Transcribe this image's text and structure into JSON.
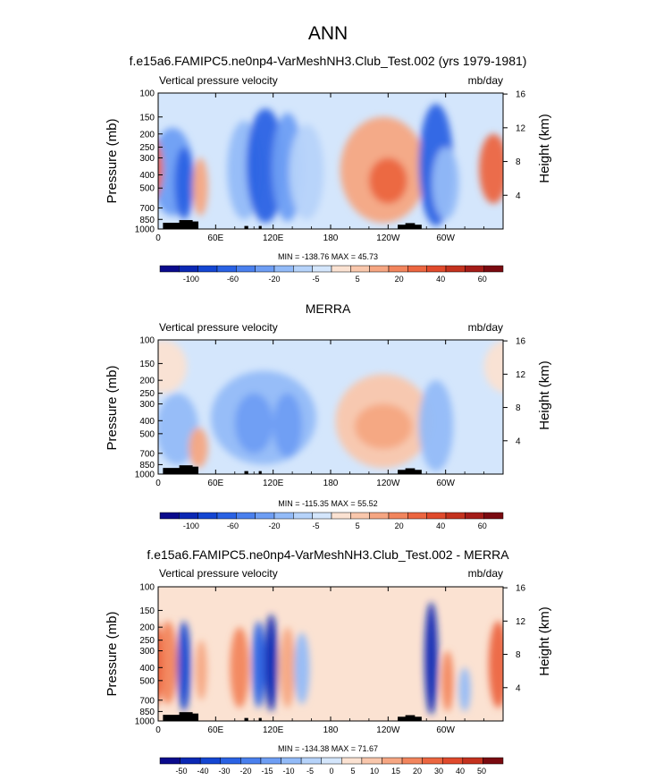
{
  "figure_title": "ANN",
  "chart_data": [
    {
      "type": "heatmap",
      "title": "f.e15a6.FAMIPC5.ne0np4-VarMeshNH3.Club_Test.002 (yrs 1979-1981)",
      "left_label": "Vertical pressure velocity",
      "right_label": "mb/day",
      "ylabel": "Pressure (mb)",
      "ylabel_right": "Height (km)",
      "x_ticks": [
        "0",
        "60E",
        "120E",
        "180",
        "120W",
        "60W"
      ],
      "y_ticks": [
        "100",
        "150",
        "200",
        "250",
        "300",
        "400",
        "500",
        "700",
        "850",
        "1000"
      ],
      "y_right_ticks": [
        "16",
        "12",
        "8",
        "4"
      ],
      "stats": "MIN = -138.76   MAX =  45.73",
      "colorbar_labels": [
        "-100",
        "-60",
        "-20",
        "-5",
        "5",
        "20",
        "40",
        "60"
      ],
      "colorbar_colors": [
        "#0a0a8c",
        "#0b28b4",
        "#1446d2",
        "#2a62e4",
        "#4a80ee",
        "#6e9ef4",
        "#93bbf8",
        "#b6d3fa",
        "#d4e6fc",
        "#fbe2d2",
        "#f9c7ac",
        "#f6a682",
        "#f2855d",
        "#ec6640",
        "#e04a2c",
        "#c4321e",
        "#a41c18",
        "#7a0a10"
      ],
      "features": [
        {
          "lon": 15,
          "lon_w": 22,
          "p_top": 180,
          "p_bot": 800,
          "value": -45
        },
        {
          "lon": 27,
          "lon_w": 10,
          "p_top": 250,
          "p_bot": 850,
          "value": -70
        },
        {
          "lon": 44,
          "lon_w": 8,
          "p_top": 300,
          "p_bot": 800,
          "value": 20
        },
        {
          "lon": 90,
          "lon_w": 18,
          "p_top": 160,
          "p_bot": 850,
          "value": -25
        },
        {
          "lon": 112,
          "lon_w": 20,
          "p_top": 130,
          "p_bot": 900,
          "value": -60
        },
        {
          "lon": 135,
          "lon_w": 16,
          "p_top": 140,
          "p_bot": 880,
          "value": -45
        },
        {
          "lon": 155,
          "lon_w": 18,
          "p_top": 170,
          "p_bot": 850,
          "value": -15
        },
        {
          "lon": 235,
          "lon_w": 45,
          "p_top": 150,
          "p_bot": 900,
          "value": 15
        },
        {
          "lon": 240,
          "lon_w": 20,
          "p_top": 300,
          "p_bot": 650,
          "value": 32
        },
        {
          "lon": 290,
          "lon_w": 18,
          "p_top": 120,
          "p_bot": 950,
          "value": -60
        },
        {
          "lon": 300,
          "lon_w": 14,
          "p_top": 250,
          "p_bot": 850,
          "value": -25
        },
        {
          "lon": 350,
          "lon_w": 15,
          "p_top": 200,
          "p_bot": 650,
          "value": 30
        }
      ]
    },
    {
      "type": "heatmap",
      "title": "MERRA",
      "left_label": "Vertical pressure velocity",
      "right_label": "mb/day",
      "ylabel": "Pressure (mb)",
      "ylabel_right": "Height (km)",
      "x_ticks": [
        "0",
        "60E",
        "120E",
        "180",
        "120W",
        "60W"
      ],
      "y_ticks": [
        "100",
        "150",
        "200",
        "250",
        "300",
        "400",
        "500",
        "700",
        "850",
        "1000"
      ],
      "y_right_ticks": [
        "16",
        "12",
        "8",
        "4"
      ],
      "stats": "MIN = -115.35   MAX =  55.52",
      "colorbar_labels": [
        "-100",
        "-60",
        "-20",
        "-5",
        "5",
        "20",
        "40",
        "60"
      ],
      "colorbar_colors": [
        "#0a0a8c",
        "#0b28b4",
        "#1446d2",
        "#2a62e4",
        "#4a80ee",
        "#6e9ef4",
        "#93bbf8",
        "#b6d3fa",
        "#d4e6fc",
        "#fbe2d2",
        "#f9c7ac",
        "#f6a682",
        "#f2855d",
        "#ec6640",
        "#e04a2c",
        "#c4321e",
        "#a41c18",
        "#7a0a10"
      ],
      "features": [
        {
          "lon": 20,
          "lon_w": 22,
          "p_top": 250,
          "p_bot": 850,
          "value": -30
        },
        {
          "lon": 42,
          "lon_w": 10,
          "p_top": 450,
          "p_bot": 900,
          "value": 20
        },
        {
          "lon": 110,
          "lon_w": 55,
          "p_top": 170,
          "p_bot": 850,
          "value": -30
        },
        {
          "lon": 100,
          "lon_w": 20,
          "p_top": 250,
          "p_bot": 700,
          "value": -45
        },
        {
          "lon": 135,
          "lon_w": 15,
          "p_top": 250,
          "p_bot": 750,
          "value": -40
        },
        {
          "lon": 235,
          "lon_w": 50,
          "p_top": 180,
          "p_bot": 900,
          "value": 10
        },
        {
          "lon": 235,
          "lon_w": 30,
          "p_top": 300,
          "p_bot": 650,
          "value": 20
        },
        {
          "lon": 290,
          "lon_w": 18,
          "p_top": 200,
          "p_bot": 950,
          "value": -35
        },
        {
          "lon": 365,
          "lon_w": 25,
          "p_top": 100,
          "p_bot": 250,
          "value": 6
        }
      ]
    },
    {
      "type": "heatmap",
      "title": "f.e15a6.FAMIPC5.ne0np4-VarMeshNH3.Club_Test.002 - MERRA",
      "left_label": "Vertical pressure velocity",
      "right_label": "mb/day",
      "ylabel": "Pressure (mb)",
      "ylabel_right": "Height (km)",
      "x_ticks": [
        "0",
        "60E",
        "120E",
        "180",
        "120W",
        "60W"
      ],
      "y_ticks": [
        "100",
        "150",
        "200",
        "250",
        "300",
        "400",
        "500",
        "700",
        "850",
        "1000"
      ],
      "y_right_ticks": [
        "16",
        "12",
        "8",
        "4"
      ],
      "stats": "MIN = -134.38   MAX =  71.67",
      "colorbar_labels": [
        "-50",
        "-40",
        "-30",
        "-20",
        "-15",
        "-10",
        "-5",
        "0",
        "5",
        "10",
        "15",
        "20",
        "30",
        "40",
        "50"
      ],
      "colorbar_colors": [
        "#0a0a8c",
        "#0b28b4",
        "#1446d2",
        "#2a62e4",
        "#4a80ee",
        "#6e9ef4",
        "#93bbf8",
        "#b6d3fa",
        "#d4e6fc",
        "#fbe2d2",
        "#f9c7ac",
        "#f6a682",
        "#f2855d",
        "#ec6640",
        "#e04a2c",
        "#c4321e",
        "#7a0a10"
      ],
      "features": [
        {
          "lon": 10,
          "lon_w": 10,
          "p_top": 180,
          "p_bot": 750,
          "value": 28
        },
        {
          "lon": 27,
          "lon_w": 7,
          "p_top": 180,
          "p_bot": 850,
          "value": -38
        },
        {
          "lon": 45,
          "lon_w": 6,
          "p_top": 250,
          "p_bot": 700,
          "value": 18
        },
        {
          "lon": 85,
          "lon_w": 10,
          "p_top": 200,
          "p_bot": 800,
          "value": 28
        },
        {
          "lon": 105,
          "lon_w": 7,
          "p_top": 180,
          "p_bot": 800,
          "value": -32
        },
        {
          "lon": 118,
          "lon_w": 7,
          "p_top": 160,
          "p_bot": 850,
          "value": -42
        },
        {
          "lon": 135,
          "lon_w": 8,
          "p_top": 200,
          "p_bot": 800,
          "value": 18
        },
        {
          "lon": 150,
          "lon_w": 8,
          "p_top": 220,
          "p_bot": 750,
          "value": -12
        },
        {
          "lon": 285,
          "lon_w": 7,
          "p_top": 130,
          "p_bot": 900,
          "value": -45
        },
        {
          "lon": 302,
          "lon_w": 6,
          "p_top": 300,
          "p_bot": 850,
          "value": 25
        },
        {
          "lon": 320,
          "lon_w": 6,
          "p_top": 400,
          "p_bot": 850,
          "value": -15
        },
        {
          "lon": 355,
          "lon_w": 10,
          "p_top": 180,
          "p_bot": 800,
          "value": 30
        }
      ]
    }
  ]
}
